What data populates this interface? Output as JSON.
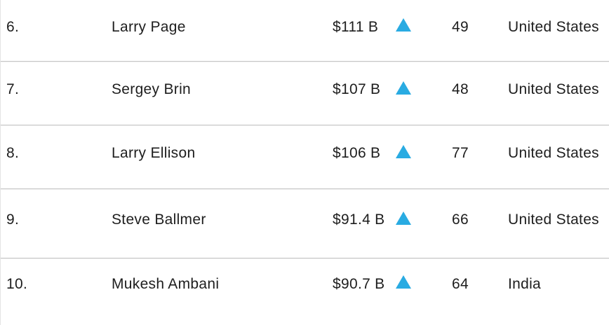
{
  "table": {
    "rows": [
      {
        "rank": "6.",
        "name": "Larry Page",
        "net_worth": "$111 B",
        "change_direction": "up",
        "age": "49",
        "country": "United States"
      },
      {
        "rank": "7.",
        "name": "Sergey Brin",
        "net_worth": "$107 B",
        "change_direction": "up",
        "age": "48",
        "country": "United States"
      },
      {
        "rank": "8.",
        "name": "Larry Ellison",
        "net_worth": "$106 B",
        "change_direction": "up",
        "age": "77",
        "country": "United States"
      },
      {
        "rank": "9.",
        "name": "Steve Ballmer",
        "net_worth": "$91.4 B",
        "change_direction": "up",
        "age": "66",
        "country": "United States"
      },
      {
        "rank": "10.",
        "name": "Mukesh Ambani",
        "net_worth": "$90.7 B",
        "change_direction": "up",
        "age": "64",
        "country": "India"
      }
    ]
  },
  "icons": {
    "change_up": "triangle-up-icon"
  },
  "colors": {
    "change_up": "#29abe2",
    "text": "#1e1e1e",
    "divider": "#c6c6c6",
    "left_edge": "#e4e4e4",
    "background": "#ffffff"
  }
}
